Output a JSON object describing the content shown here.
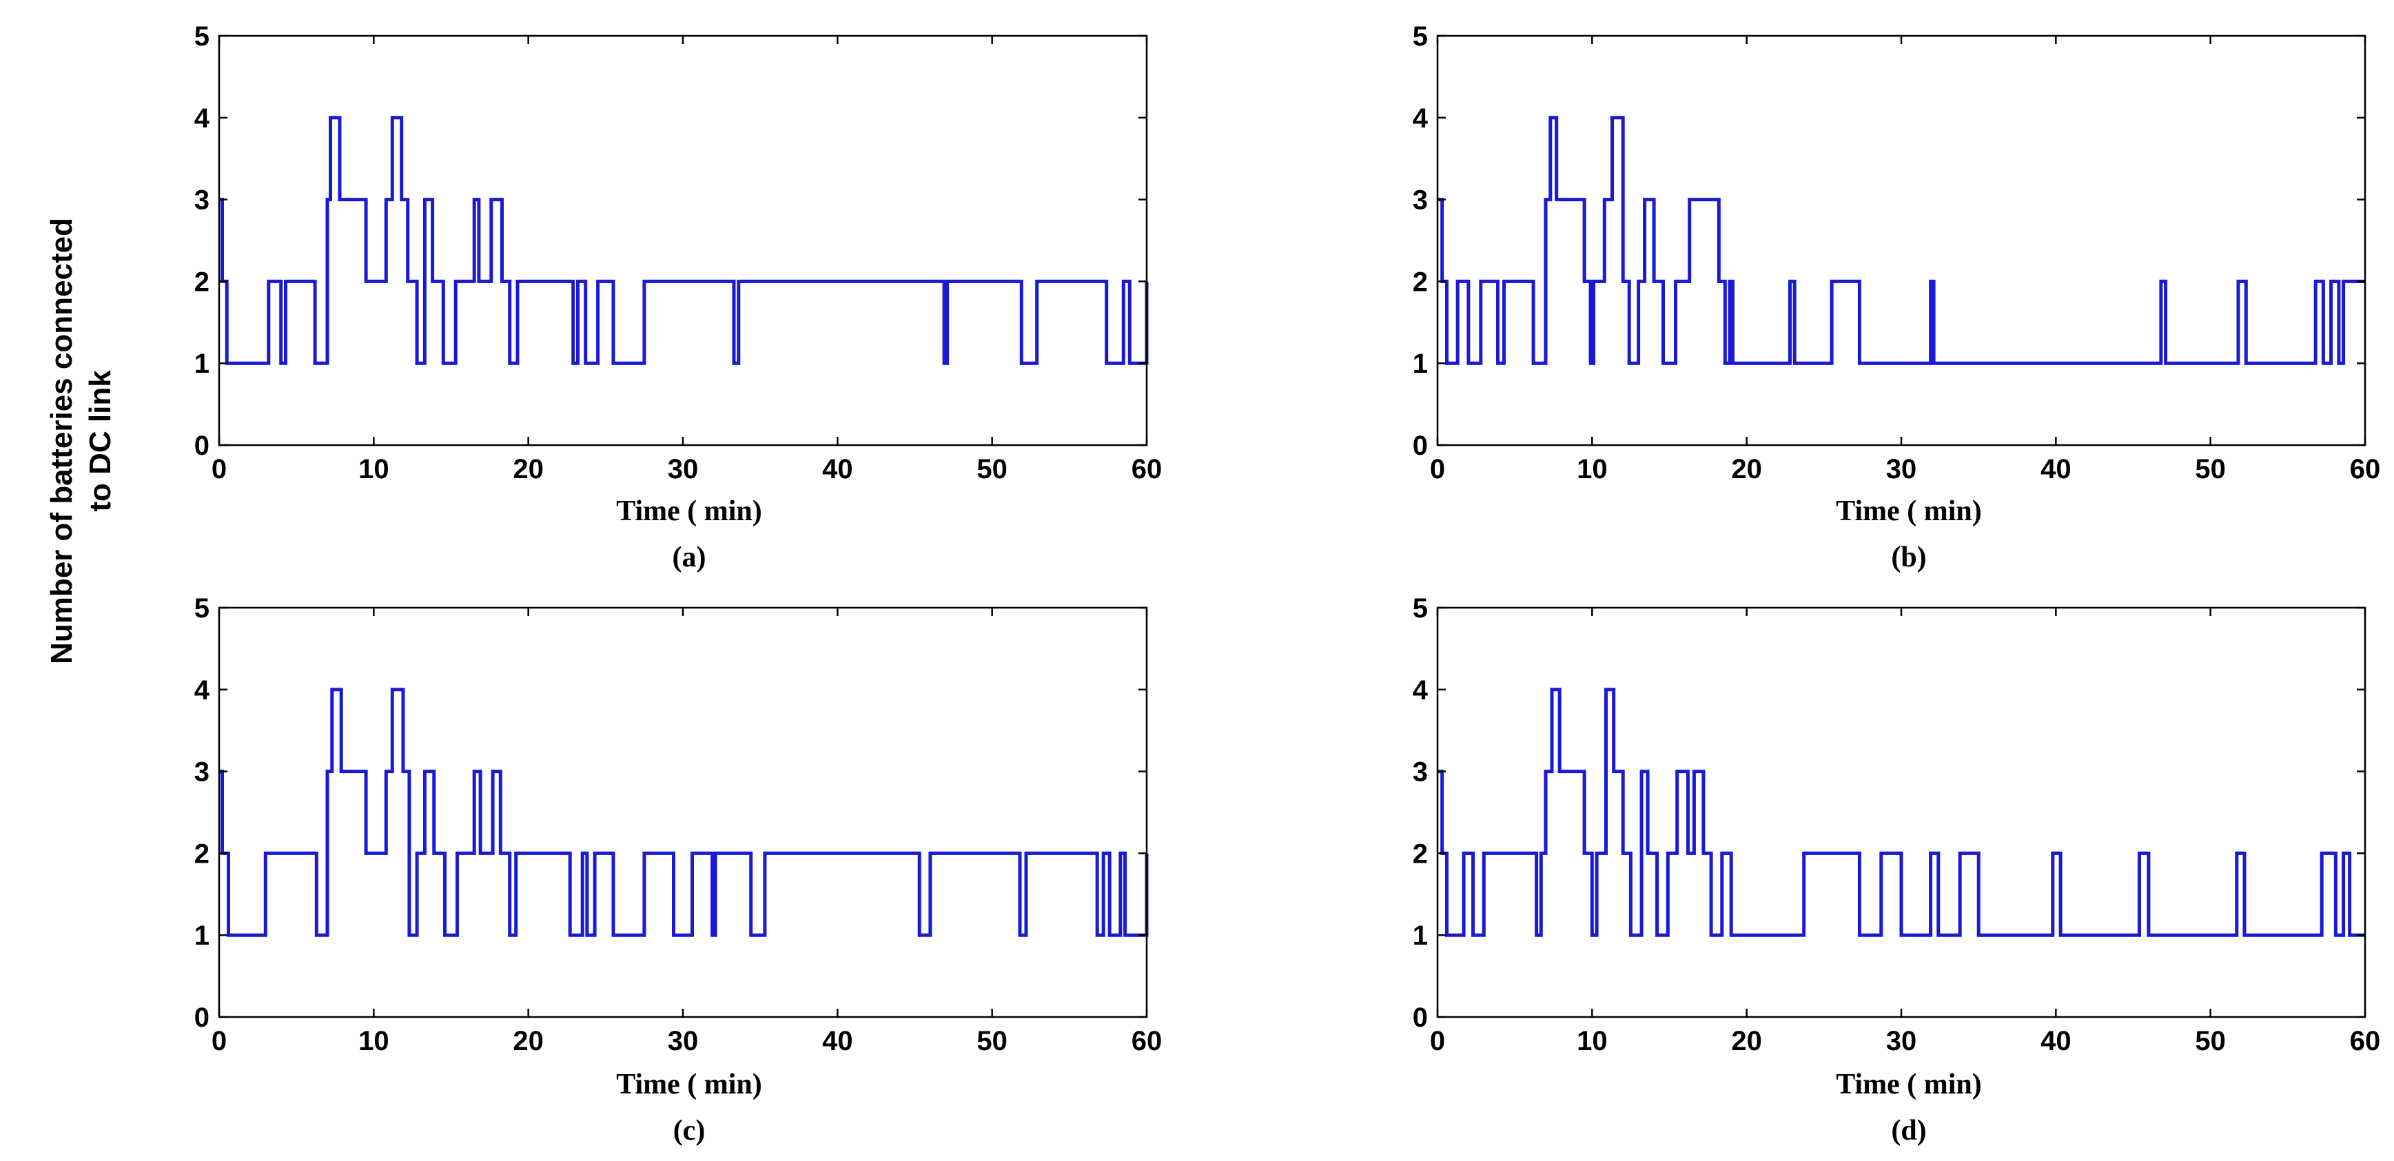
{
  "figure": {
    "ylabel_line1": "Number of batteries connected",
    "ylabel_line2": "to DC link"
  },
  "chart_data": [
    {
      "type": "line",
      "caption": "(a)",
      "xlabel": "Time ( min)",
      "ylabel": "Number of batteries connected to DC link",
      "xlim": [
        0,
        60
      ],
      "ylim": [
        0,
        5
      ],
      "xticks": [
        0,
        10,
        20,
        30,
        40,
        50,
        60
      ],
      "yticks": [
        0,
        1,
        2,
        3,
        4,
        5
      ],
      "color": "#1a1ad6",
      "series": [
        {
          "name": "batteries",
          "x": [
            0,
            0.2,
            0.5,
            3.2,
            4.0,
            4.3,
            6.2,
            7.0,
            7.2,
            7.8,
            9.5,
            10.8,
            11.2,
            11.8,
            12.2,
            12.8,
            13.3,
            13.8,
            14.5,
            15.3,
            16.5,
            16.8,
            17.6,
            18.3,
            18.8,
            19.3,
            22.9,
            23.2,
            23.7,
            24.5,
            25.5,
            27.5,
            33.3,
            33.6,
            46.9,
            47.1,
            51.9,
            52.9,
            57.4,
            58.5,
            58.9,
            60
          ],
          "y": [
            3,
            2,
            1,
            2,
            1,
            2,
            1,
            3,
            4,
            3,
            2,
            3,
            4,
            3,
            2,
            1,
            3,
            2,
            1,
            2,
            3,
            2,
            3,
            2,
            1,
            2,
            1,
            2,
            1,
            2,
            1,
            2,
            1,
            2,
            1,
            2,
            1,
            2,
            1,
            2,
            1,
            2
          ]
        }
      ]
    },
    {
      "type": "line",
      "caption": "(b)",
      "xlabel": "Time ( min)",
      "ylabel": "Number of batteries connected to DC link",
      "xlim": [
        0,
        60
      ],
      "ylim": [
        0,
        5
      ],
      "xticks": [
        0,
        10,
        20,
        30,
        40,
        50,
        60
      ],
      "yticks": [
        0,
        1,
        2,
        3,
        4,
        5
      ],
      "color": "#1a1ad6",
      "series": [
        {
          "name": "batteries",
          "x": [
            0,
            0.3,
            0.6,
            1.3,
            2.0,
            2.8,
            3.9,
            4.3,
            6.2,
            7.0,
            7.3,
            7.7,
            9.5,
            9.9,
            10.1,
            10.8,
            11.3,
            12.0,
            12.4,
            13.0,
            13.4,
            14.0,
            14.6,
            15.4,
            16.3,
            18.2,
            18.6,
            18.9,
            19.1,
            22.8,
            23.1,
            25.5,
            27.3,
            31.9,
            32.1,
            46.8,
            47.1,
            51.8,
            52.3,
            56.8,
            57.3,
            57.8,
            58.3,
            58.6,
            60
          ],
          "y": [
            3,
            2,
            1,
            2,
            1,
            2,
            1,
            2,
            1,
            3,
            4,
            3,
            2,
            1,
            2,
            3,
            4,
            2,
            1,
            2,
            3,
            2,
            1,
            2,
            3,
            2,
            1,
            2,
            1,
            2,
            1,
            2,
            1,
            2,
            1,
            2,
            1,
            2,
            1,
            2,
            1,
            2,
            1,
            2,
            2
          ]
        }
      ]
    },
    {
      "type": "line",
      "caption": "(c)",
      "xlabel": "Time ( min)",
      "ylabel": "Number of batteries connected to DC link",
      "xlim": [
        0,
        60
      ],
      "ylim": [
        0,
        5
      ],
      "xticks": [
        0,
        10,
        20,
        30,
        40,
        50,
        60
      ],
      "yticks": [
        0,
        1,
        2,
        3,
        4,
        5
      ],
      "color": "#1a1ad6",
      "series": [
        {
          "name": "batteries",
          "x": [
            0,
            0.2,
            0.6,
            3.0,
            6.3,
            7.0,
            7.3,
            7.9,
            9.5,
            10.8,
            11.2,
            11.9,
            12.3,
            12.8,
            13.3,
            13.9,
            14.6,
            15.4,
            16.5,
            16.9,
            17.7,
            18.2,
            18.8,
            19.2,
            22.7,
            23.5,
            23.8,
            24.3,
            25.5,
            27.5,
            29.4,
            30.6,
            31.9,
            32.1,
            34.4,
            35.3,
            45.3,
            46.0,
            51.8,
            52.2,
            56.8,
            57.2,
            57.6,
            58.3,
            58.6,
            60
          ],
          "y": [
            3,
            2,
            1,
            2,
            1,
            3,
            4,
            3,
            2,
            3,
            4,
            3,
            1,
            2,
            3,
            2,
            1,
            2,
            3,
            2,
            3,
            2,
            1,
            2,
            1,
            2,
            1,
            2,
            1,
            2,
            1,
            2,
            1,
            2,
            1,
            2,
            1,
            2,
            1,
            2,
            1,
            2,
            1,
            2,
            1,
            2
          ]
        }
      ]
    },
    {
      "type": "line",
      "caption": "(d)",
      "xlabel": "Time ( min)",
      "ylabel": "Number of batteries connected to DC link",
      "xlim": [
        0,
        60
      ],
      "ylim": [
        0,
        5
      ],
      "xticks": [
        0,
        10,
        20,
        30,
        40,
        50,
        60
      ],
      "yticks": [
        0,
        1,
        2,
        3,
        4,
        5
      ],
      "color": "#1a1ad6",
      "series": [
        {
          "name": "batteries",
          "x": [
            0,
            0.3,
            0.6,
            1.7,
            2.3,
            3.0,
            6.4,
            6.7,
            7.0,
            7.4,
            7.9,
            9.5,
            10.0,
            10.3,
            10.9,
            11.4,
            12.0,
            12.5,
            13.2,
            13.6,
            14.2,
            14.9,
            15.5,
            16.2,
            16.6,
            17.2,
            17.7,
            18.4,
            19.0,
            23.7,
            24.5,
            25.4,
            27.3,
            28.7,
            30.0,
            31.9,
            32.4,
            33.8,
            35.0,
            39.8,
            40.3,
            45.4,
            46.0,
            51.7,
            52.2,
            57.2,
            58.1,
            58.6,
            59.0,
            59.6,
            60
          ],
          "y": [
            3,
            2,
            1,
            2,
            1,
            2,
            1,
            2,
            3,
            4,
            3,
            2,
            1,
            2,
            4,
            3,
            2,
            1,
            3,
            2,
            1,
            2,
            3,
            2,
            3,
            2,
            1,
            2,
            1,
            2,
            2,
            2,
            1,
            2,
            1,
            2,
            1,
            2,
            1,
            2,
            1,
            2,
            1,
            2,
            1,
            2,
            1,
            2,
            1,
            1,
            1
          ]
        }
      ]
    }
  ]
}
